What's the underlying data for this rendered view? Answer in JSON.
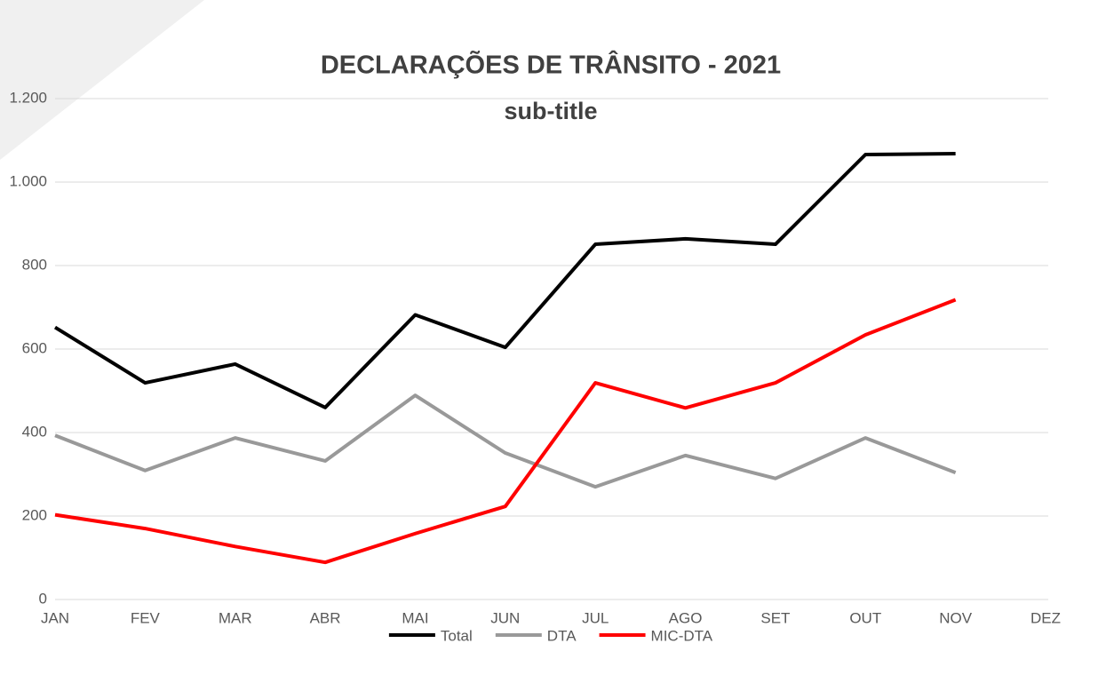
{
  "chart_data": {
    "type": "line",
    "title": "DECLARAÇÕES DE TRÂNSITO - 2021",
    "subtitle": "sub-title",
    "categories": [
      "JAN",
      "FEV",
      "MAR",
      "ABR",
      "MAI",
      "JUN",
      "JUL",
      "AGO",
      "SET",
      "OUT",
      "NOV",
      "DEZ"
    ],
    "series": [
      {
        "name": "Total",
        "color": "#000000",
        "values": [
          652,
          519,
          564,
          460,
          682,
          604,
          851,
          864,
          851,
          1066,
          1068,
          null
        ]
      },
      {
        "name": "DTA",
        "color": "#999999",
        "values": [
          393,
          309,
          387,
          332,
          489,
          351,
          270,
          345,
          290,
          387,
          304,
          null
        ]
      },
      {
        "name": "MIC-DTA",
        "color": "#ff0000",
        "values": [
          203,
          170,
          127,
          89,
          158,
          223,
          519,
          459,
          519,
          634,
          718,
          null
        ]
      }
    ],
    "ylim": [
      0,
      1200
    ],
    "yticks": [
      0,
      200,
      400,
      600,
      800,
      {
        "value": 1000,
        "label": "1.000"
      },
      {
        "value": 1200,
        "label": "1.200"
      }
    ],
    "grid": true,
    "legend": "bottom"
  }
}
